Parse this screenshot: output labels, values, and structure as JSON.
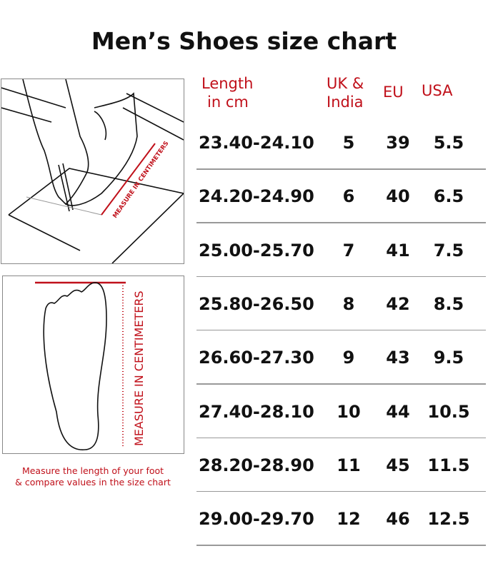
{
  "title": "Men’s Shoes size chart",
  "illustration_top": {
    "ruler_text": "MEASURE IN CENTIMETERS"
  },
  "illustration_bottom": {
    "ruler_text": "MEASURE IN CENTIMETERS"
  },
  "caption": {
    "line1": "Measure the length of your foot",
    "line2": "& compare values in the size chart"
  },
  "accent_color": "#c0101a",
  "table": {
    "headers": {
      "length_line1": "Length",
      "length_line2": "in cm",
      "uk_line1": "UK &",
      "uk_line2": "India",
      "eu": "EU",
      "usa": "USA"
    },
    "rows": [
      {
        "length": "23.40-24.10",
        "uk": "5",
        "eu": "39",
        "usa": "5.5"
      },
      {
        "length": "24.20-24.90",
        "uk": "6",
        "eu": "40",
        "usa": "6.5"
      },
      {
        "length": "25.00-25.70",
        "uk": "7",
        "eu": "41",
        "usa": "7.5"
      },
      {
        "length": "25.80-26.50",
        "uk": "8",
        "eu": "42",
        "usa": "8.5"
      },
      {
        "length": "26.60-27.30",
        "uk": "9",
        "eu": "43",
        "usa": "9.5"
      },
      {
        "length": "27.40-28.10",
        "uk": "10",
        "eu": "44",
        "usa": "10.5"
      },
      {
        "length": "28.20-28.90",
        "uk": "11",
        "eu": "45",
        "usa": "11.5"
      },
      {
        "length": "29.00-29.70",
        "uk": "12",
        "eu": "46",
        "usa": "12.5"
      }
    ]
  }
}
